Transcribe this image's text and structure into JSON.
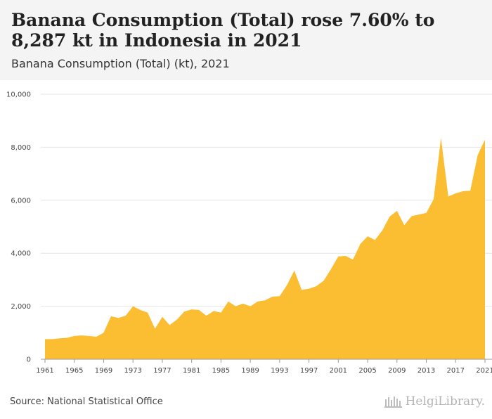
{
  "header": {
    "title": "Banana Consumption (Total) rose 7.60% to 8,287 kt in Indonesia in 2021",
    "subtitle": "Banana Consumption (Total) (kt), 2021"
  },
  "footer": {
    "source": "Source: National Statistical Office",
    "logo": "HelgiLibrary."
  },
  "colors": {
    "area": "#fbbd31",
    "grid": "#e4e4e4",
    "header_bg": "#f4f4f4"
  },
  "chart_data": {
    "type": "area",
    "title": "Banana Consumption (Total) (kt), 2021",
    "xlabel": "",
    "ylabel": "",
    "ylim": [
      0,
      10000
    ],
    "yticks": [
      0,
      2000,
      4000,
      6000,
      8000,
      10000
    ],
    "ytick_labels": [
      "0",
      "2,000",
      "4,000",
      "6,000",
      "8,000",
      "10,000"
    ],
    "xtick_labels": [
      "1961",
      "1965",
      "1969",
      "1973",
      "1977",
      "1981",
      "1985",
      "1989",
      "1993",
      "1997",
      "2001",
      "2005",
      "2009",
      "2013",
      "2017",
      "2021"
    ],
    "x": [
      1961,
      1962,
      1963,
      1964,
      1965,
      1966,
      1967,
      1968,
      1969,
      1970,
      1971,
      1972,
      1973,
      1974,
      1975,
      1976,
      1977,
      1978,
      1979,
      1980,
      1981,
      1982,
      1983,
      1984,
      1985,
      1986,
      1987,
      1988,
      1989,
      1990,
      1991,
      1992,
      1993,
      1994,
      1995,
      1996,
      1997,
      1998,
      1999,
      2000,
      2001,
      2002,
      2003,
      2004,
      2005,
      2006,
      2007,
      2008,
      2009,
      2010,
      2011,
      2012,
      2013,
      2014,
      2015,
      2016,
      2017,
      2018,
      2019,
      2020,
      2021
    ],
    "values": [
      760,
      760,
      790,
      810,
      880,
      900,
      880,
      850,
      1000,
      1620,
      1560,
      1640,
      2000,
      1860,
      1760,
      1150,
      1600,
      1290,
      1500,
      1800,
      1880,
      1860,
      1640,
      1820,
      1760,
      2180,
      2000,
      2100,
      2000,
      2180,
      2220,
      2360,
      2380,
      2800,
      3350,
      2620,
      2660,
      2760,
      2960,
      3400,
      3880,
      3900,
      3760,
      4350,
      4640,
      4500,
      4860,
      5380,
      5600,
      5060,
      5400,
      5460,
      5520,
      6040,
      8350,
      6140,
      6260,
      6340,
      6360,
      7700,
      8287
    ],
    "series": [
      {
        "name": "Banana Consumption (Total) (kt)",
        "values_ref": "values"
      }
    ]
  }
}
